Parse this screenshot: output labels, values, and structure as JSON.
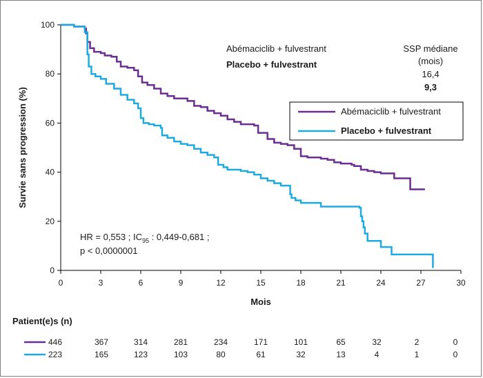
{
  "chart_data": {
    "type": "line",
    "title": "",
    "xlabel": "Mois",
    "ylabel": "Survie sans progression (%)",
    "xlim": [
      0,
      30
    ],
    "ylim": [
      0,
      100
    ],
    "x_ticks": [
      0,
      3,
      6,
      9,
      12,
      15,
      18,
      21,
      24,
      27,
      30
    ],
    "y_ticks": [
      0,
      20,
      40,
      60,
      80,
      100
    ],
    "grid": false,
    "legend_position": "right",
    "series": [
      {
        "name": "Abémaciclib + fulvestrant",
        "color": "#6a2d91",
        "points": [
          [
            0,
            100
          ],
          [
            0.9,
            100
          ],
          [
            1.0,
            99.3
          ],
          [
            1.7,
            99.3
          ],
          [
            1.8,
            98.5
          ],
          [
            1.9,
            96.5
          ],
          [
            2.0,
            93
          ],
          [
            2.2,
            90.5
          ],
          [
            2.5,
            89
          ],
          [
            3.0,
            88.5
          ],
          [
            3.3,
            87.5
          ],
          [
            3.8,
            87
          ],
          [
            4.2,
            85
          ],
          [
            4.5,
            83
          ],
          [
            5.0,
            82.5
          ],
          [
            5.5,
            81.5
          ],
          [
            5.8,
            79
          ],
          [
            6.1,
            76.5
          ],
          [
            6.5,
            75.5
          ],
          [
            7.0,
            74
          ],
          [
            7.5,
            72
          ],
          [
            8.0,
            71
          ],
          [
            8.5,
            70
          ],
          [
            9.5,
            69
          ],
          [
            10.0,
            67
          ],
          [
            10.5,
            66.5
          ],
          [
            11.0,
            65
          ],
          [
            11.5,
            64
          ],
          [
            12.0,
            63
          ],
          [
            12.5,
            61.5
          ],
          [
            13.0,
            60.5
          ],
          [
            13.5,
            59.5
          ],
          [
            14.5,
            59
          ],
          [
            14.8,
            56
          ],
          [
            15.5,
            53.5
          ],
          [
            16.0,
            52
          ],
          [
            16.5,
            51.5
          ],
          [
            17.0,
            51
          ],
          [
            17.5,
            49.5
          ],
          [
            18.0,
            46.5
          ],
          [
            18.5,
            46
          ],
          [
            19.5,
            45.5
          ],
          [
            20.0,
            45
          ],
          [
            20.5,
            44
          ],
          [
            21.0,
            43.5
          ],
          [
            21.8,
            43
          ],
          [
            22.0,
            42.5
          ],
          [
            22.5,
            41
          ],
          [
            23.0,
            40.5
          ],
          [
            23.5,
            40
          ],
          [
            24.0,
            39.5
          ],
          [
            25.0,
            39.5
          ],
          [
            25.0,
            37.5
          ],
          [
            26.0,
            37.5
          ],
          [
            26.2,
            33
          ],
          [
            27.3,
            33
          ]
        ]
      },
      {
        "name": "Placebo + fulvestrant",
        "color": "#1ea9e0",
        "points": [
          [
            0,
            100
          ],
          [
            0.8,
            100
          ],
          [
            1.0,
            99.3
          ],
          [
            1.6,
            99.3
          ],
          [
            1.8,
            97
          ],
          [
            2.0,
            88
          ],
          [
            2.1,
            83
          ],
          [
            2.3,
            80
          ],
          [
            2.6,
            79
          ],
          [
            3.0,
            78
          ],
          [
            3.4,
            76
          ],
          [
            4.0,
            74
          ],
          [
            4.5,
            71.5
          ],
          [
            5.0,
            69.5
          ],
          [
            5.5,
            68
          ],
          [
            5.8,
            66
          ],
          [
            6.0,
            62
          ],
          [
            6.2,
            60
          ],
          [
            6.6,
            59.5
          ],
          [
            7.0,
            59
          ],
          [
            7.5,
            58
          ],
          [
            7.6,
            55
          ],
          [
            8.0,
            54
          ],
          [
            8.5,
            52.5
          ],
          [
            9.0,
            51.5
          ],
          [
            9.5,
            51
          ],
          [
            10.0,
            49.5
          ],
          [
            10.5,
            48
          ],
          [
            11.0,
            47
          ],
          [
            11.5,
            46
          ],
          [
            11.8,
            43
          ],
          [
            12.2,
            42
          ],
          [
            12.5,
            41
          ],
          [
            13.5,
            40.5
          ],
          [
            14.0,
            40
          ],
          [
            14.5,
            39
          ],
          [
            15.0,
            37.5
          ],
          [
            15.5,
            36.5
          ],
          [
            16.0,
            35.5
          ],
          [
            16.5,
            34.5
          ],
          [
            17.2,
            31
          ],
          [
            17.3,
            29.5
          ],
          [
            17.6,
            28.5
          ],
          [
            18.0,
            27.5
          ],
          [
            19.3,
            27.5
          ],
          [
            19.5,
            26
          ],
          [
            22.0,
            26
          ],
          [
            22.4,
            25.5
          ],
          [
            22.5,
            22
          ],
          [
            22.6,
            20
          ],
          [
            22.7,
            17.5
          ],
          [
            22.8,
            15
          ],
          [
            23.0,
            12
          ],
          [
            24.0,
            12
          ],
          [
            24.0,
            9.5
          ],
          [
            24.7,
            9.5
          ],
          [
            24.8,
            6.5
          ],
          [
            27.8,
            6.5
          ],
          [
            27.9,
            1
          ]
        ]
      }
    ],
    "summary_table": {
      "col1": "Abémaciclib + fulvestrant",
      "col2": "Placebo + fulvestrant",
      "header_line1": "SSP médiane",
      "header_line2": "(mois)",
      "value1": "16,4",
      "value2": "9,3"
    },
    "annotation": {
      "line1": "HR = 0,553 ; IC",
      "sub": "95",
      "line1_rest": " : 0,449-0,681 ;",
      "line2": "p < 0,0000001"
    },
    "risk_table": {
      "title": "Patient(e)s (n)",
      "rows": [
        {
          "color": "#6a2d91",
          "values": [
            "446",
            "367",
            "314",
            "281",
            "234",
            "171",
            "101",
            "65",
            "32",
            "2",
            "0"
          ]
        },
        {
          "color": "#1ea9e0",
          "values": [
            "223",
            "165",
            "123",
            "103",
            "80",
            "61",
            "32",
            "13",
            "4",
            "1",
            "0"
          ]
        }
      ]
    }
  }
}
